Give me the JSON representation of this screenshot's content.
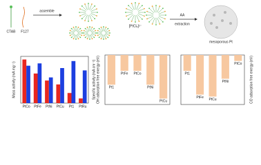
{
  "schematic": {
    "ctab": "CTAB",
    "f127": "F127",
    "assemble": "assemble",
    "precursor": "[PtCl₆]²⁻",
    "aa": "AA",
    "extraction": "extraction",
    "product": "mesoporous Pt"
  },
  "chart_data": [
    {
      "type": "bar",
      "y_label": "Mass activity (mA mg⁻¹)",
      "y2_label": "Specific activity (mA cm⁻²)",
      "categories": [
        "PtCo",
        "PtFe",
        "PtNi",
        "PtCu",
        "Pt1",
        "PtRu"
      ],
      "series": [
        {
          "name": "Mass activity",
          "color": "#e8271f",
          "values": [
            560,
            380,
            290,
            240,
            130,
            60
          ]
        },
        {
          "name": "Specific activity",
          "color": "#1c3fe0",
          "axis": "y2",
          "values": [
            4.8,
            5.1,
            3.3,
            4.5,
            5.4,
            4.2
          ]
        }
      ],
      "ylim": [
        0,
        600
      ],
      "y2lim": [
        0,
        6
      ]
    },
    {
      "type": "bar",
      "y_label": "OH adsorption free energy (eV)",
      "axis_side": "left",
      "categories": [
        "Pt1",
        "PtFe",
        "PtCo",
        "PtNi",
        "PtCu"
      ],
      "values": [
        -1.5,
        -0.8,
        -0.8,
        -1.5,
        -2.2
      ],
      "color": "#f7c8a0",
      "ylim": [
        -2.5,
        0
      ]
    },
    {
      "type": "bar",
      "y_label": "CO adsorption free energy (eV)",
      "axis_side": "right",
      "categories": [
        "Pt1",
        "PtFe",
        "PtCu",
        "PtNi",
        "PtCo"
      ],
      "values": [
        -0.8,
        -2.0,
        -2.1,
        -1.2,
        -0.3
      ],
      "color": "#f7c8a0",
      "ylim": [
        -2.5,
        0
      ]
    }
  ]
}
